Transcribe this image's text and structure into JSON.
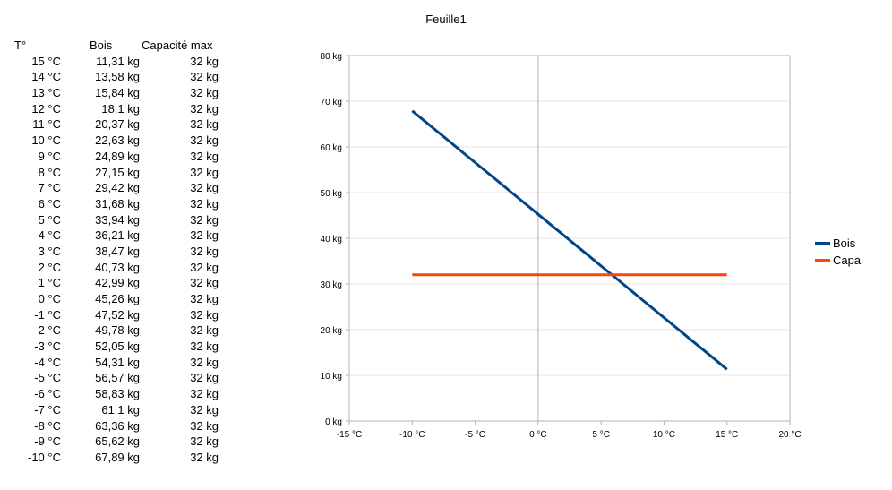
{
  "page_title": "Feuille1",
  "table": {
    "headers": [
      "T°",
      "Bois",
      "Capacité max"
    ],
    "rows": [
      [
        "15 °C",
        "11,31 kg",
        "32 kg"
      ],
      [
        "14 °C",
        "13,58 kg",
        "32 kg"
      ],
      [
        "13 °C",
        "15,84 kg",
        "32 kg"
      ],
      [
        "12 °C",
        "18,1 kg",
        "32 kg"
      ],
      [
        "11 °C",
        "20,37 kg",
        "32 kg"
      ],
      [
        "10 °C",
        "22,63 kg",
        "32 kg"
      ],
      [
        "9 °C",
        "24,89 kg",
        "32 kg"
      ],
      [
        "8 °C",
        "27,15 kg",
        "32 kg"
      ],
      [
        "7 °C",
        "29,42 kg",
        "32 kg"
      ],
      [
        "6 °C",
        "31,68 kg",
        "32 kg"
      ],
      [
        "5 °C",
        "33,94 kg",
        "32 kg"
      ],
      [
        "4 °C",
        "36,21 kg",
        "32 kg"
      ],
      [
        "3 °C",
        "38,47 kg",
        "32 kg"
      ],
      [
        "2 °C",
        "40,73 kg",
        "32 kg"
      ],
      [
        "1 °C",
        "42,99 kg",
        "32 kg"
      ],
      [
        "0 °C",
        "45,26 kg",
        "32 kg"
      ],
      [
        "-1 °C",
        "47,52 kg",
        "32 kg"
      ],
      [
        "-2 °C",
        "49,78 kg",
        "32 kg"
      ],
      [
        "-3 °C",
        "52,05 kg",
        "32 kg"
      ],
      [
        "-4 °C",
        "54,31 kg",
        "32 kg"
      ],
      [
        "-5 °C",
        "56,57 kg",
        "32 kg"
      ],
      [
        "-6 °C",
        "58,83 kg",
        "32 kg"
      ],
      [
        "-7 °C",
        "61,1 kg",
        "32 kg"
      ],
      [
        "-8 °C",
        "63,36 kg",
        "32 kg"
      ],
      [
        "-9 °C",
        "65,62 kg",
        "32 kg"
      ],
      [
        "-10 °C",
        "67,89 kg",
        "32 kg"
      ]
    ]
  },
  "chart_data": {
    "type": "line",
    "xlim": [
      -15,
      20
    ],
    "ylim": [
      0,
      80
    ],
    "x_ticks": [
      -15,
      -10,
      -5,
      0,
      5,
      10,
      15,
      20
    ],
    "y_ticks": [
      0,
      10,
      20,
      30,
      40,
      50,
      60,
      70,
      80
    ],
    "x_tick_labels": [
      "-15 °C",
      "-10 °C",
      "-5 °C",
      "0 °C",
      "5 °C",
      "10 °C",
      "15 °C",
      "20 °C"
    ],
    "y_tick_labels": [
      "0 kg",
      "10 kg",
      "20 kg",
      "30 kg",
      "40 kg",
      "50 kg",
      "60 kg",
      "70 kg",
      "80 kg"
    ],
    "grid": true,
    "legend": "right",
    "series": [
      {
        "name": "Bois",
        "color": "#004586",
        "x": [
          15,
          14,
          13,
          12,
          11,
          10,
          9,
          8,
          7,
          6,
          5,
          4,
          3,
          2,
          1,
          0,
          -1,
          -2,
          -3,
          -4,
          -5,
          -6,
          -7,
          -8,
          -9,
          -10
        ],
        "y": [
          11.31,
          13.58,
          15.84,
          18.1,
          20.37,
          22.63,
          24.89,
          27.15,
          29.42,
          31.68,
          33.94,
          36.21,
          38.47,
          40.73,
          42.99,
          45.26,
          47.52,
          49.78,
          52.05,
          54.31,
          56.57,
          58.83,
          61.1,
          63.36,
          65.62,
          67.89
        ]
      },
      {
        "name": "Capa",
        "color": "#ff420e",
        "x": [
          15,
          -10
        ],
        "y": [
          32,
          32
        ]
      }
    ]
  }
}
